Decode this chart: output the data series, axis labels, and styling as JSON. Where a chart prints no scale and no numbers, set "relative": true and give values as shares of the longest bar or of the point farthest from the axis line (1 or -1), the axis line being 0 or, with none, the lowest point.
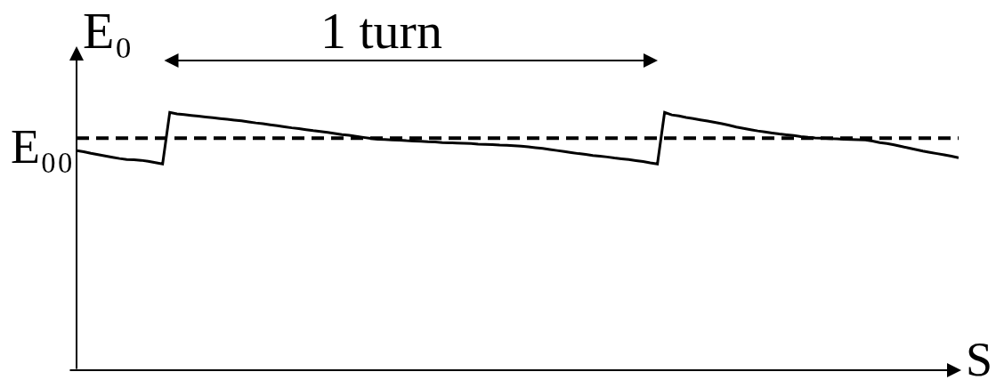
{
  "chart_data": {
    "type": "line",
    "relative": true,
    "xlabel": "S",
    "ylabel": "E₀",
    "annotations": [
      "1 turn"
    ],
    "categories": [
      null,
      null,
      null,
      null,
      null,
      null,
      null,
      null,
      null,
      null,
      null,
      null,
      null,
      null,
      null,
      null,
      null,
      null,
      null,
      null,
      null,
      null,
      null,
      null,
      null,
      null,
      null,
      null,
      null,
      null,
      null,
      null,
      null,
      null,
      null,
      null,
      null,
      null,
      null,
      null,
      null,
      null,
      null,
      null,
      null,
      null,
      null,
      null,
      null,
      null,
      null,
      null,
      null,
      null,
      null,
      null,
      null,
      null,
      null,
      null,
      null,
      null,
      null,
      null,
      null,
      null,
      null,
      null,
      null,
      null,
      null,
      null,
      null,
      null,
      null,
      null,
      null,
      null,
      null,
      null,
      null,
      null,
      null,
      null,
      null,
      null,
      null,
      null,
      null,
      null,
      null,
      null,
      null,
      null,
      null,
      null,
      null,
      null,
      null,
      null,
      null,
      null,
      null,
      null,
      null,
      null,
      null,
      null,
      null,
      null,
      null,
      null,
      null,
      null,
      null,
      null,
      null,
      null,
      null,
      null,
      null,
      null,
      null,
      null
    ],
    "series": [
      {
        "color": "#000000",
        "values": [
          0.852,
          0.847,
          0.841,
          0.836,
          0.831,
          0.826,
          0.821,
          0.817,
          0.816,
          0.814,
          0.81,
          0.805,
          0.8,
          1,
          0.994,
          0.991,
          0.988,
          0.985,
          0.982,
          0.979,
          0.976,
          0.973,
          0.97,
          0.967,
          0.963,
          0.959,
          0.956,
          0.952,
          0.948,
          0.944,
          0.94,
          0.937,
          0.933,
          0.929,
          0.926,
          0.922,
          0.918,
          0.914,
          0.911,
          0.907,
          0.903,
          0.899,
          0.896,
          0.895,
          0.893,
          0.892,
          0.89,
          0.889,
          0.888,
          0.886,
          0.885,
          0.883,
          0.882,
          0.881,
          0.88,
          0.879,
          0.877,
          0.876,
          0.875,
          0.873,
          0.872,
          0.871,
          0.869,
          0.866,
          0.863,
          0.86,
          0.856,
          0.852,
          0.848,
          0.844,
          0.84,
          0.837,
          0.833,
          0.83,
          0.827,
          0.823,
          0.82,
          0.817,
          0.813,
          0.809,
          0.804,
          0.8,
          1,
          0.99,
          0.986,
          0.98,
          0.976,
          0.971,
          0.966,
          0.961,
          0.956,
          0.95,
          0.943,
          0.938,
          0.933,
          0.928,
          0.924,
          0.92,
          0.916,
          0.913,
          0.91,
          0.906,
          0.903,
          0.901,
          0.9,
          0.898,
          0.897,
          0.896,
          0.895,
          0.894,
          0.893,
          0.889,
          0.883,
          0.879,
          0.874,
          0.868,
          0.862,
          0.856,
          0.85,
          0.845,
          0.84,
          0.835,
          0.83,
          0.824
        ]
      }
    ],
    "ref_lines": [
      {
        "axis": "y",
        "value": 0.9,
        "label": "E₀₀",
        "color": "#000000",
        "line_style": "dashed"
      }
    ]
  }
}
